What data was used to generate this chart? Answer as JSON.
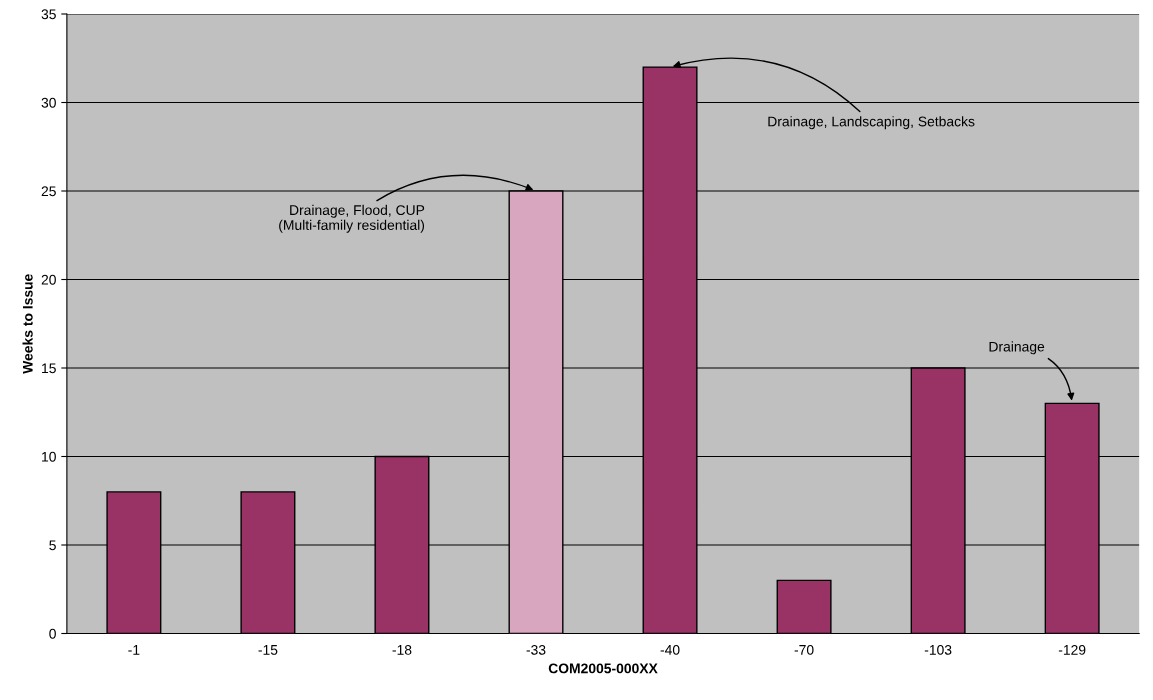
{
  "chart_data": {
    "type": "bar",
    "xlabel": "COM2005-000XX",
    "ylabel": "Weeks to Issue",
    "categories": [
      "-1",
      "-15",
      "-18",
      "-33",
      "-40",
      "-70",
      "-103",
      "-129"
    ],
    "values": [
      8,
      8,
      10,
      25,
      32,
      3,
      15,
      13
    ],
    "colors": [
      "#993366",
      "#993366",
      "#993366",
      "#d9a6bf",
      "#993366",
      "#993366",
      "#993366",
      "#993366"
    ],
    "ylim": [
      0,
      35
    ],
    "yticks": [
      0,
      5,
      10,
      15,
      20,
      25,
      30,
      35
    ],
    "grid": "y",
    "legend": false,
    "annotations": [
      {
        "text": "Drainage, Flood, CUP\n(Multi-family residential)",
        "x": "-33",
        "y": 25
      },
      {
        "text": "Drainage, Landscaping, Setbacks",
        "x": "-40",
        "y": 32
      },
      {
        "text": "Drainage",
        "x": "-129",
        "y": 13
      }
    ]
  }
}
